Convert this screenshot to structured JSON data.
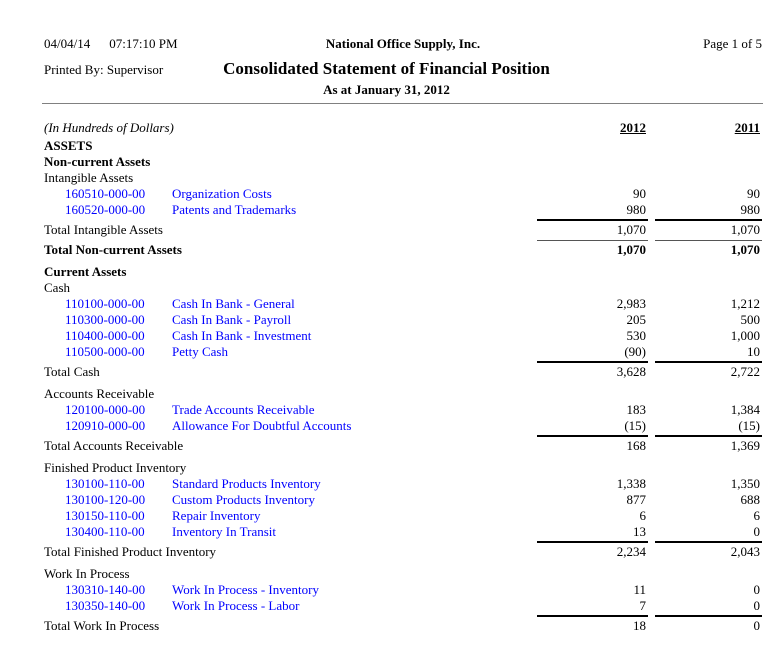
{
  "header": {
    "date": "04/04/14",
    "time": "07:17:10 PM",
    "company": "National Office Supply, Inc.",
    "page": "Page 1 of 5",
    "printed_by": "Printed By: Supervisor",
    "title": "Consolidated Statement of Financial Position",
    "subtitle": "As at January 31, 2012"
  },
  "columns": {
    "unit_note": "(In Hundreds of Dollars)",
    "year1": "2012",
    "year2": "2011"
  },
  "colors": {
    "link_blue": "#0000ff",
    "text": "#000000",
    "rule_gray": "#808080"
  },
  "rows": [
    {
      "type": "label_bold",
      "label": "ASSETS"
    },
    {
      "type": "label_bold",
      "label": "Non-current Assets"
    },
    {
      "type": "label",
      "label": "Intangible Assets"
    },
    {
      "type": "account",
      "code": "160510-000-00",
      "desc": "Organization Costs",
      "v2012": "90",
      "v2011": "90"
    },
    {
      "type": "account",
      "code": "160520-000-00",
      "desc": "Patents and Trademarks",
      "v2012": "980",
      "v2011": "980"
    },
    {
      "type": "total",
      "label": "Total Intangible Assets",
      "v2012": "1,070",
      "v2011": "1,070"
    },
    {
      "type": "grand_total",
      "label": "Total Non-current Assets",
      "v2012": "1,070",
      "v2011": "1,070"
    },
    {
      "type": "label_bold",
      "label": "Current Assets",
      "gap": true
    },
    {
      "type": "label",
      "label": "Cash"
    },
    {
      "type": "account",
      "code": "110100-000-00",
      "desc": "Cash In Bank - General",
      "v2012": "2,983",
      "v2011": "1,212"
    },
    {
      "type": "account",
      "code": "110300-000-00",
      "desc": "Cash In Bank - Payroll",
      "v2012": "205",
      "v2011": "500"
    },
    {
      "type": "account",
      "code": "110400-000-00",
      "desc": "Cash In Bank - Investment",
      "v2012": "530",
      "v2011": "1,000"
    },
    {
      "type": "account",
      "code": "110500-000-00",
      "desc": "Petty Cash",
      "v2012": "(90)",
      "v2011": "10"
    },
    {
      "type": "total",
      "label": "Total Cash",
      "v2012": "3,628",
      "v2011": "2,722"
    },
    {
      "type": "label",
      "label": "Accounts Receivable",
      "gap": true
    },
    {
      "type": "account",
      "code": "120100-000-00",
      "desc": "Trade Accounts Receivable",
      "v2012": "183",
      "v2011": "1,384"
    },
    {
      "type": "account",
      "code": "120910-000-00",
      "desc": "Allowance For Doubtful Accounts",
      "v2012": "(15)",
      "v2011": "(15)"
    },
    {
      "type": "total",
      "label": "Total Accounts Receivable",
      "v2012": "168",
      "v2011": "1,369"
    },
    {
      "type": "label",
      "label": "Finished Product Inventory",
      "gap": true
    },
    {
      "type": "account",
      "code": "130100-110-00",
      "desc": "Standard Products Inventory",
      "v2012": "1,338",
      "v2011": "1,350"
    },
    {
      "type": "account",
      "code": "130100-120-00",
      "desc": "Custom Products Inventory",
      "v2012": "877",
      "v2011": "688"
    },
    {
      "type": "account",
      "code": "130150-110-00",
      "desc": "Repair Inventory",
      "v2012": "6",
      "v2011": "6"
    },
    {
      "type": "account",
      "code": "130400-110-00",
      "desc": "Inventory In Transit",
      "v2012": "13",
      "v2011": "0"
    },
    {
      "type": "total",
      "label": "Total Finished Product Inventory",
      "v2012": "2,234",
      "v2011": "2,043"
    },
    {
      "type": "label",
      "label": "Work In Process",
      "gap": true
    },
    {
      "type": "account",
      "code": "130310-140-00",
      "desc": "Work In Process - Inventory",
      "v2012": "11",
      "v2011": "0"
    },
    {
      "type": "account",
      "code": "130350-140-00",
      "desc": "Work In Process - Labor",
      "v2012": "7",
      "v2011": "0"
    },
    {
      "type": "total",
      "label": "Total Work In Process",
      "v2012": "18",
      "v2011": "0"
    }
  ]
}
